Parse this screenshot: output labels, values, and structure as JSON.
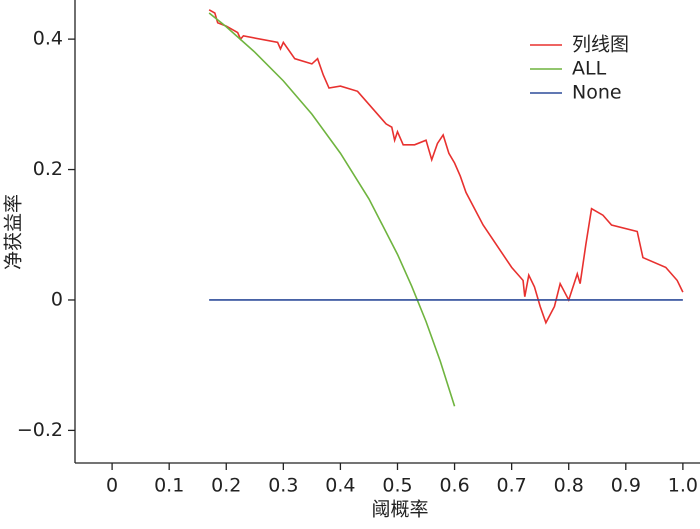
{
  "chart_data": {
    "type": "line",
    "xlabel": "阈概率",
    "ylabel": "净获益率",
    "xlim": [
      -0.065,
      1.03
    ],
    "ylim": [
      -0.25,
      0.46
    ],
    "xticks": [
      0,
      0.1,
      0.2,
      0.3,
      0.4,
      0.5,
      0.6,
      0.7,
      0.8,
      0.9,
      {
        "value": 1,
        "label": "1.0"
      }
    ],
    "yticks": [
      {
        "value": -0.2,
        "label": "−0.2"
      },
      0,
      0.2,
      0.4
    ],
    "legend": "upper right",
    "series": [
      {
        "name": "列线图",
        "color": "#e8312f",
        "x": [
          0.17,
          0.18,
          0.185,
          0.2,
          0.22,
          0.225,
          0.23,
          0.29,
          0.295,
          0.3,
          0.32,
          0.35,
          0.36,
          0.37,
          0.38,
          0.4,
          0.43,
          0.48,
          0.49,
          0.495,
          0.5,
          0.51,
          0.53,
          0.55,
          0.56,
          0.57,
          0.58,
          0.59,
          0.6,
          0.61,
          0.62,
          0.65,
          0.7,
          0.72,
          0.723,
          0.73,
          0.74,
          0.75,
          0.76,
          0.775,
          0.785,
          0.8,
          0.815,
          0.82,
          0.83,
          0.84,
          0.86,
          0.875,
          0.92,
          0.93,
          0.97,
          0.99,
          1.0
        ],
        "values": [
          0.445,
          0.44,
          0.425,
          0.42,
          0.41,
          0.4,
          0.405,
          0.395,
          0.385,
          0.395,
          0.37,
          0.362,
          0.37,
          0.345,
          0.325,
          0.328,
          0.32,
          0.27,
          0.265,
          0.245,
          0.258,
          0.238,
          0.238,
          0.245,
          0.215,
          0.24,
          0.253,
          0.225,
          0.21,
          0.19,
          0.165,
          0.115,
          0.05,
          0.03,
          0.005,
          0.038,
          0.02,
          -0.01,
          -0.035,
          -0.01,
          0.025,
          0.0,
          0.04,
          0.025,
          0.085,
          0.14,
          0.13,
          0.115,
          0.105,
          0.065,
          0.05,
          0.03,
          0.012
        ]
      },
      {
        "name": "ALL",
        "color": "#6fb43f",
        "x": [
          0.17,
          0.2,
          0.25,
          0.3,
          0.35,
          0.4,
          0.45,
          0.5,
          0.525,
          0.55,
          0.575,
          0.6
        ],
        "values": [
          0.44,
          0.419,
          0.38,
          0.336,
          0.285,
          0.225,
          0.155,
          0.07,
          0.021,
          -0.033,
          -0.094,
          -0.163
        ]
      },
      {
        "name": "None",
        "color": "#2d4b9a",
        "x": [
          0.17,
          1.0
        ],
        "values": [
          0,
          0
        ]
      }
    ]
  }
}
